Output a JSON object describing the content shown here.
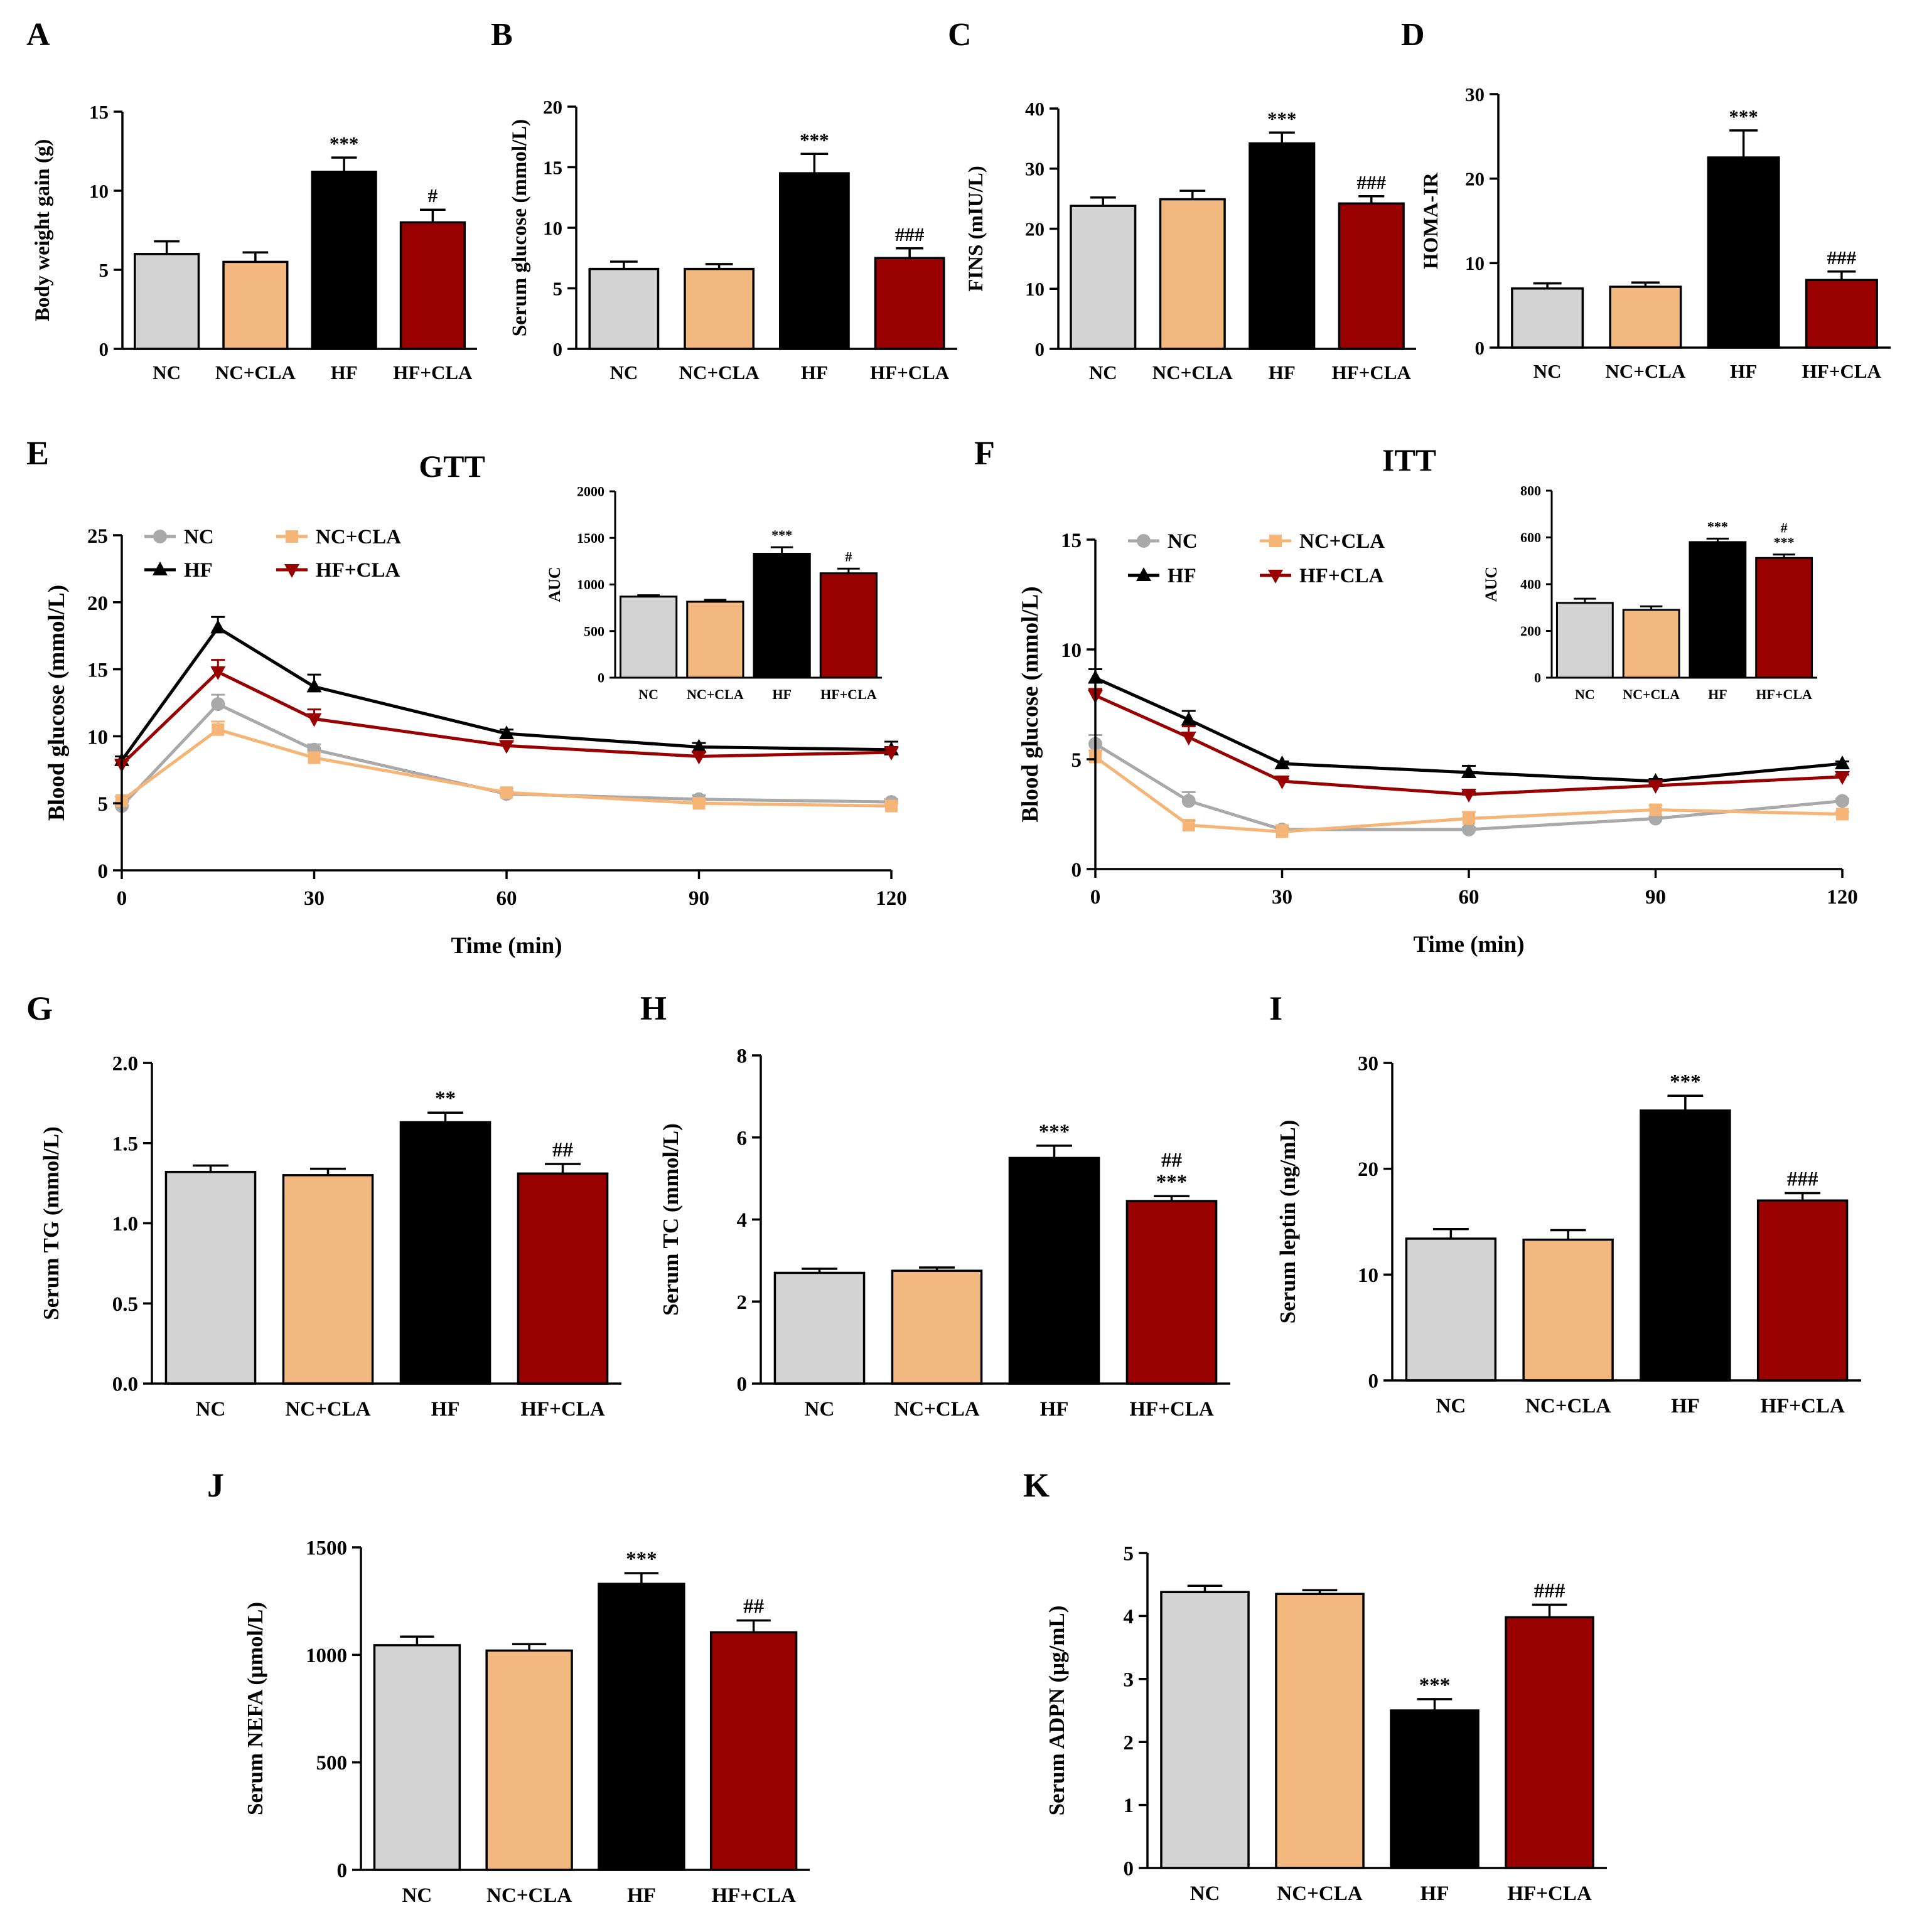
{
  "figure": {
    "groups": [
      "NC",
      "NC+CLA",
      "HF",
      "HF+CLA"
    ],
    "group_colors": {
      "NC": "#d3d3d3",
      "NC+CLA": "#f2b880",
      "HF": "#000000",
      "HF+CLA": "#990000"
    }
  },
  "chart_data": [
    {
      "id": "A",
      "type": "bar",
      "panel_label": "A",
      "ylabel": "Body weight gain (g)",
      "categories": [
        "NC",
        "NC+CLA",
        "HF",
        "HF+CLA"
      ],
      "values": [
        6.0,
        5.5,
        11.2,
        8.0
      ],
      "errors": [
        0.8,
        0.6,
        0.9,
        0.8
      ],
      "annotations": [
        "",
        "",
        "***",
        "#"
      ],
      "ylim": [
        0,
        15
      ],
      "yticks": [
        0,
        5,
        10,
        15
      ]
    },
    {
      "id": "B",
      "type": "bar",
      "panel_label": "B",
      "ylabel": "Serum glucose (mmol/L)",
      "categories": [
        "NC",
        "NC+CLA",
        "HF",
        "HF+CLA"
      ],
      "values": [
        6.6,
        6.6,
        14.5,
        7.5
      ],
      "errors": [
        0.6,
        0.4,
        1.6,
        0.8
      ],
      "annotations": [
        "",
        "",
        "***",
        "###"
      ],
      "ylim": [
        0,
        20
      ],
      "yticks": [
        0,
        5,
        10,
        15,
        20
      ]
    },
    {
      "id": "C",
      "type": "bar",
      "panel_label": "C",
      "ylabel": "FINS (mIU/L)",
      "categories": [
        "NC",
        "NC+CLA",
        "HF",
        "HF+CLA"
      ],
      "values": [
        23.8,
        24.9,
        34.2,
        24.2
      ],
      "errors": [
        1.4,
        1.4,
        1.8,
        1.2
      ],
      "annotations": [
        "",
        "",
        "***",
        "###"
      ],
      "ylim": [
        0,
        40
      ],
      "yticks": [
        0,
        10,
        20,
        30,
        40
      ]
    },
    {
      "id": "D",
      "type": "bar",
      "panel_label": "D",
      "ylabel": "HOMA-IR",
      "categories": [
        "NC",
        "NC+CLA",
        "HF",
        "HF+CLA"
      ],
      "values": [
        7.0,
        7.2,
        22.5,
        8.0
      ],
      "errors": [
        0.6,
        0.5,
        3.2,
        1.0
      ],
      "annotations": [
        "",
        "",
        "***",
        "###"
      ],
      "ylim": [
        0,
        30
      ],
      "yticks": [
        0,
        10,
        20,
        30
      ]
    },
    {
      "id": "E",
      "type": "line",
      "panel_label": "E",
      "title": "GTT",
      "xlabel": "Time (min)",
      "ylabel": "Blood glucose (mmol/L)",
      "x": [
        0,
        15,
        30,
        60,
        90,
        120
      ],
      "xlim": [
        0,
        120
      ],
      "xticks": [
        0,
        30,
        60,
        90,
        120
      ],
      "ylim": [
        0,
        25
      ],
      "yticks": [
        0,
        5,
        10,
        15,
        20,
        25
      ],
      "series": [
        {
          "name": "NC",
          "marker": "circle",
          "values": [
            4.8,
            12.4,
            9.0,
            5.7,
            5.3,
            5.1
          ],
          "errors": [
            0.3,
            0.7,
            0.4,
            0.2,
            0.3,
            0.2
          ]
        },
        {
          "name": "NC+CLA",
          "marker": "square",
          "values": [
            5.2,
            10.5,
            8.4,
            5.8,
            5.0,
            4.8
          ],
          "errors": [
            0.3,
            0.6,
            0.4,
            0.3,
            0.2,
            0.2
          ]
        },
        {
          "name": "HF",
          "marker": "triangle-up",
          "values": [
            8.2,
            18.1,
            13.7,
            10.2,
            9.2,
            9.0
          ],
          "errors": [
            0.3,
            0.8,
            0.9,
            0.3,
            0.3,
            0.6
          ]
        },
        {
          "name": "HF+CLA",
          "marker": "triangle-down",
          "values": [
            7.9,
            14.8,
            11.3,
            9.3,
            8.5,
            8.8
          ],
          "errors": [
            0.3,
            0.9,
            0.7,
            0.3,
            0.3,
            0.4
          ]
        }
      ],
      "inset": {
        "type": "bar",
        "ylabel": "AUC",
        "categories": [
          "NC",
          "NC+CLA",
          "HF",
          "HF+CLA"
        ],
        "values": [
          870,
          815,
          1330,
          1120
        ],
        "errors": [
          15,
          20,
          70,
          50
        ],
        "annotations": [
          "",
          "",
          "***",
          "#"
        ],
        "ylim": [
          0,
          2000
        ],
        "yticks": [
          0,
          500,
          1000,
          1500,
          2000
        ]
      }
    },
    {
      "id": "F",
      "type": "line",
      "panel_label": "F",
      "title": "ITT",
      "xlabel": "Time (min)",
      "ylabel": "Blood glucose (mmol/L)",
      "x": [
        0,
        15,
        30,
        60,
        90,
        120
      ],
      "xlim": [
        0,
        120
      ],
      "xticks": [
        0,
        30,
        60,
        90,
        120
      ],
      "ylim": [
        0,
        15
      ],
      "yticks": [
        0,
        5,
        10,
        15
      ],
      "series": [
        {
          "name": "NC",
          "marker": "circle",
          "values": [
            5.7,
            3.1,
            1.8,
            1.8,
            2.3,
            3.1
          ],
          "errors": [
            0.4,
            0.4,
            0.1,
            0.1,
            0.1,
            0.1
          ]
        },
        {
          "name": "NC+CLA",
          "marker": "square",
          "values": [
            5.1,
            2.0,
            1.7,
            2.3,
            2.7,
            2.5
          ],
          "errors": [
            0.3,
            0.2,
            0.3,
            0.3,
            0.2,
            0.1
          ]
        },
        {
          "name": "HF",
          "marker": "triangle-up",
          "values": [
            8.7,
            6.8,
            4.8,
            4.4,
            4.0,
            4.8
          ],
          "errors": [
            0.4,
            0.4,
            0.1,
            0.3,
            0.1,
            0.1
          ]
        },
        {
          "name": "HF+CLA",
          "marker": "triangle-down",
          "values": [
            7.9,
            6.0,
            4.0,
            3.4,
            3.8,
            4.2
          ],
          "errors": [
            0.3,
            0.5,
            0.1,
            0.1,
            0.1,
            0.1
          ]
        }
      ],
      "inset": {
        "type": "bar",
        "ylabel": "AUC",
        "categories": [
          "NC",
          "NC+CLA",
          "HF",
          "HF+CLA"
        ],
        "values": [
          320,
          290,
          580,
          512
        ],
        "errors": [
          18,
          15,
          15,
          15
        ],
        "annotations": [
          "",
          "",
          "***",
          "#\n***"
        ],
        "ylim": [
          0,
          800
        ],
        "yticks": [
          0,
          200,
          400,
          600,
          800
        ]
      }
    },
    {
      "id": "G",
      "type": "bar",
      "panel_label": "G",
      "ylabel": "Serum TG (mmol/L)",
      "categories": [
        "NC",
        "NC+CLA",
        "HF",
        "HF+CLA"
      ],
      "values": [
        1.32,
        1.3,
        1.63,
        1.31
      ],
      "errors": [
        0.04,
        0.04,
        0.06,
        0.06
      ],
      "annotations": [
        "",
        "",
        "**",
        "##"
      ],
      "ylim": [
        0,
        2.0
      ],
      "yticks": [
        0.0,
        0.5,
        1.0,
        1.5,
        2.0
      ],
      "ytick_decimals": 1
    },
    {
      "id": "H",
      "type": "bar",
      "panel_label": "H",
      "ylabel": "Serum TC (mmol/L)",
      "categories": [
        "NC",
        "NC+CLA",
        "HF",
        "HF+CLA"
      ],
      "values": [
        2.7,
        2.75,
        5.5,
        4.45
      ],
      "errors": [
        0.1,
        0.08,
        0.3,
        0.12
      ],
      "annotations": [
        "",
        "",
        "***",
        "##\n***"
      ],
      "ylim": [
        0,
        8
      ],
      "yticks": [
        0,
        2,
        4,
        6,
        8
      ]
    },
    {
      "id": "I",
      "type": "bar",
      "panel_label": "I",
      "ylabel": "Serum leptin (ng/mL)",
      "categories": [
        "NC",
        "NC+CLA",
        "HF",
        "HF+CLA"
      ],
      "values": [
        13.4,
        13.3,
        25.5,
        17.0
      ],
      "errors": [
        0.9,
        0.9,
        1.4,
        0.7
      ],
      "annotations": [
        "",
        "",
        "***",
        "###"
      ],
      "ylim": [
        0,
        30
      ],
      "yticks": [
        0,
        10,
        20,
        30
      ]
    },
    {
      "id": "J",
      "type": "bar",
      "panel_label": "J",
      "ylabel": "Serum NEFA (μmol/L)",
      "categories": [
        "NC",
        "NC+CLA",
        "HF",
        "HF+CLA"
      ],
      "values": [
        1045,
        1020,
        1330,
        1105
      ],
      "errors": [
        40,
        30,
        50,
        55
      ],
      "annotations": [
        "",
        "",
        "***",
        "##"
      ],
      "ylim": [
        0,
        1500
      ],
      "yticks": [
        0,
        500,
        1000,
        1500
      ]
    },
    {
      "id": "K",
      "type": "bar",
      "panel_label": "K",
      "ylabel": "Serum ADPN (μg/mL)",
      "categories": [
        "NC",
        "NC+CLA",
        "HF",
        "HF+CLA"
      ],
      "values": [
        4.38,
        4.35,
        2.5,
        3.98
      ],
      "errors": [
        0.1,
        0.06,
        0.18,
        0.2
      ],
      "annotations": [
        "",
        "",
        "***",
        "###"
      ],
      "ylim": [
        0,
        5
      ],
      "yticks": [
        0,
        1,
        2,
        3,
        4,
        5
      ]
    }
  ]
}
